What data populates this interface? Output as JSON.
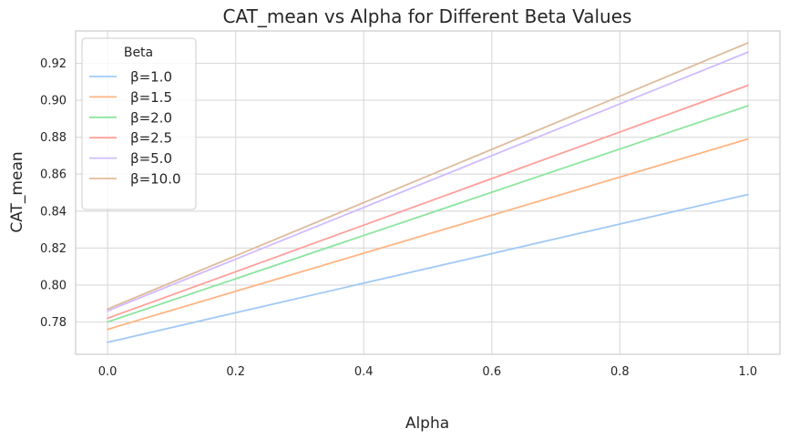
{
  "chart_data": {
    "type": "line",
    "title": "CAT_mean vs Alpha for Different Beta Values",
    "xlabel": "Alpha",
    "ylabel": "CAT_mean",
    "xlim": [
      -0.05,
      1.05
    ],
    "ylim": [
      0.7625,
      0.9375
    ],
    "xticks": [
      0.0,
      0.2,
      0.4,
      0.6,
      0.8,
      1.0
    ],
    "xtick_labels": [
      "0.0",
      "0.2",
      "0.4",
      "0.6",
      "0.8",
      "1.0"
    ],
    "yticks": [
      0.78,
      0.8,
      0.82,
      0.84,
      0.86,
      0.88,
      0.9,
      0.92
    ],
    "ytick_labels": [
      "0.78",
      "0.80",
      "0.82",
      "0.84",
      "0.86",
      "0.88",
      "0.90",
      "0.92"
    ],
    "grid": true,
    "legend": {
      "title": "Beta",
      "placement": "top-left"
    },
    "x": [
      0.0,
      1.0
    ],
    "series": [
      {
        "name": "β=1.0",
        "values": [
          0.769,
          0.849
        ],
        "color": "#a1c9f4"
      },
      {
        "name": "β=1.5",
        "values": [
          0.776,
          0.879
        ],
        "color": "#ffb482"
      },
      {
        "name": "β=2.0",
        "values": [
          0.78,
          0.897
        ],
        "color": "#8de5a1"
      },
      {
        "name": "β=2.5",
        "values": [
          0.782,
          0.908
        ],
        "color": "#ff9f9b"
      },
      {
        "name": "β=5.0",
        "values": [
          0.786,
          0.926
        ],
        "color": "#d0bbff"
      },
      {
        "name": "β=10.0",
        "values": [
          0.787,
          0.931
        ],
        "color": "#debb9b"
      }
    ]
  }
}
